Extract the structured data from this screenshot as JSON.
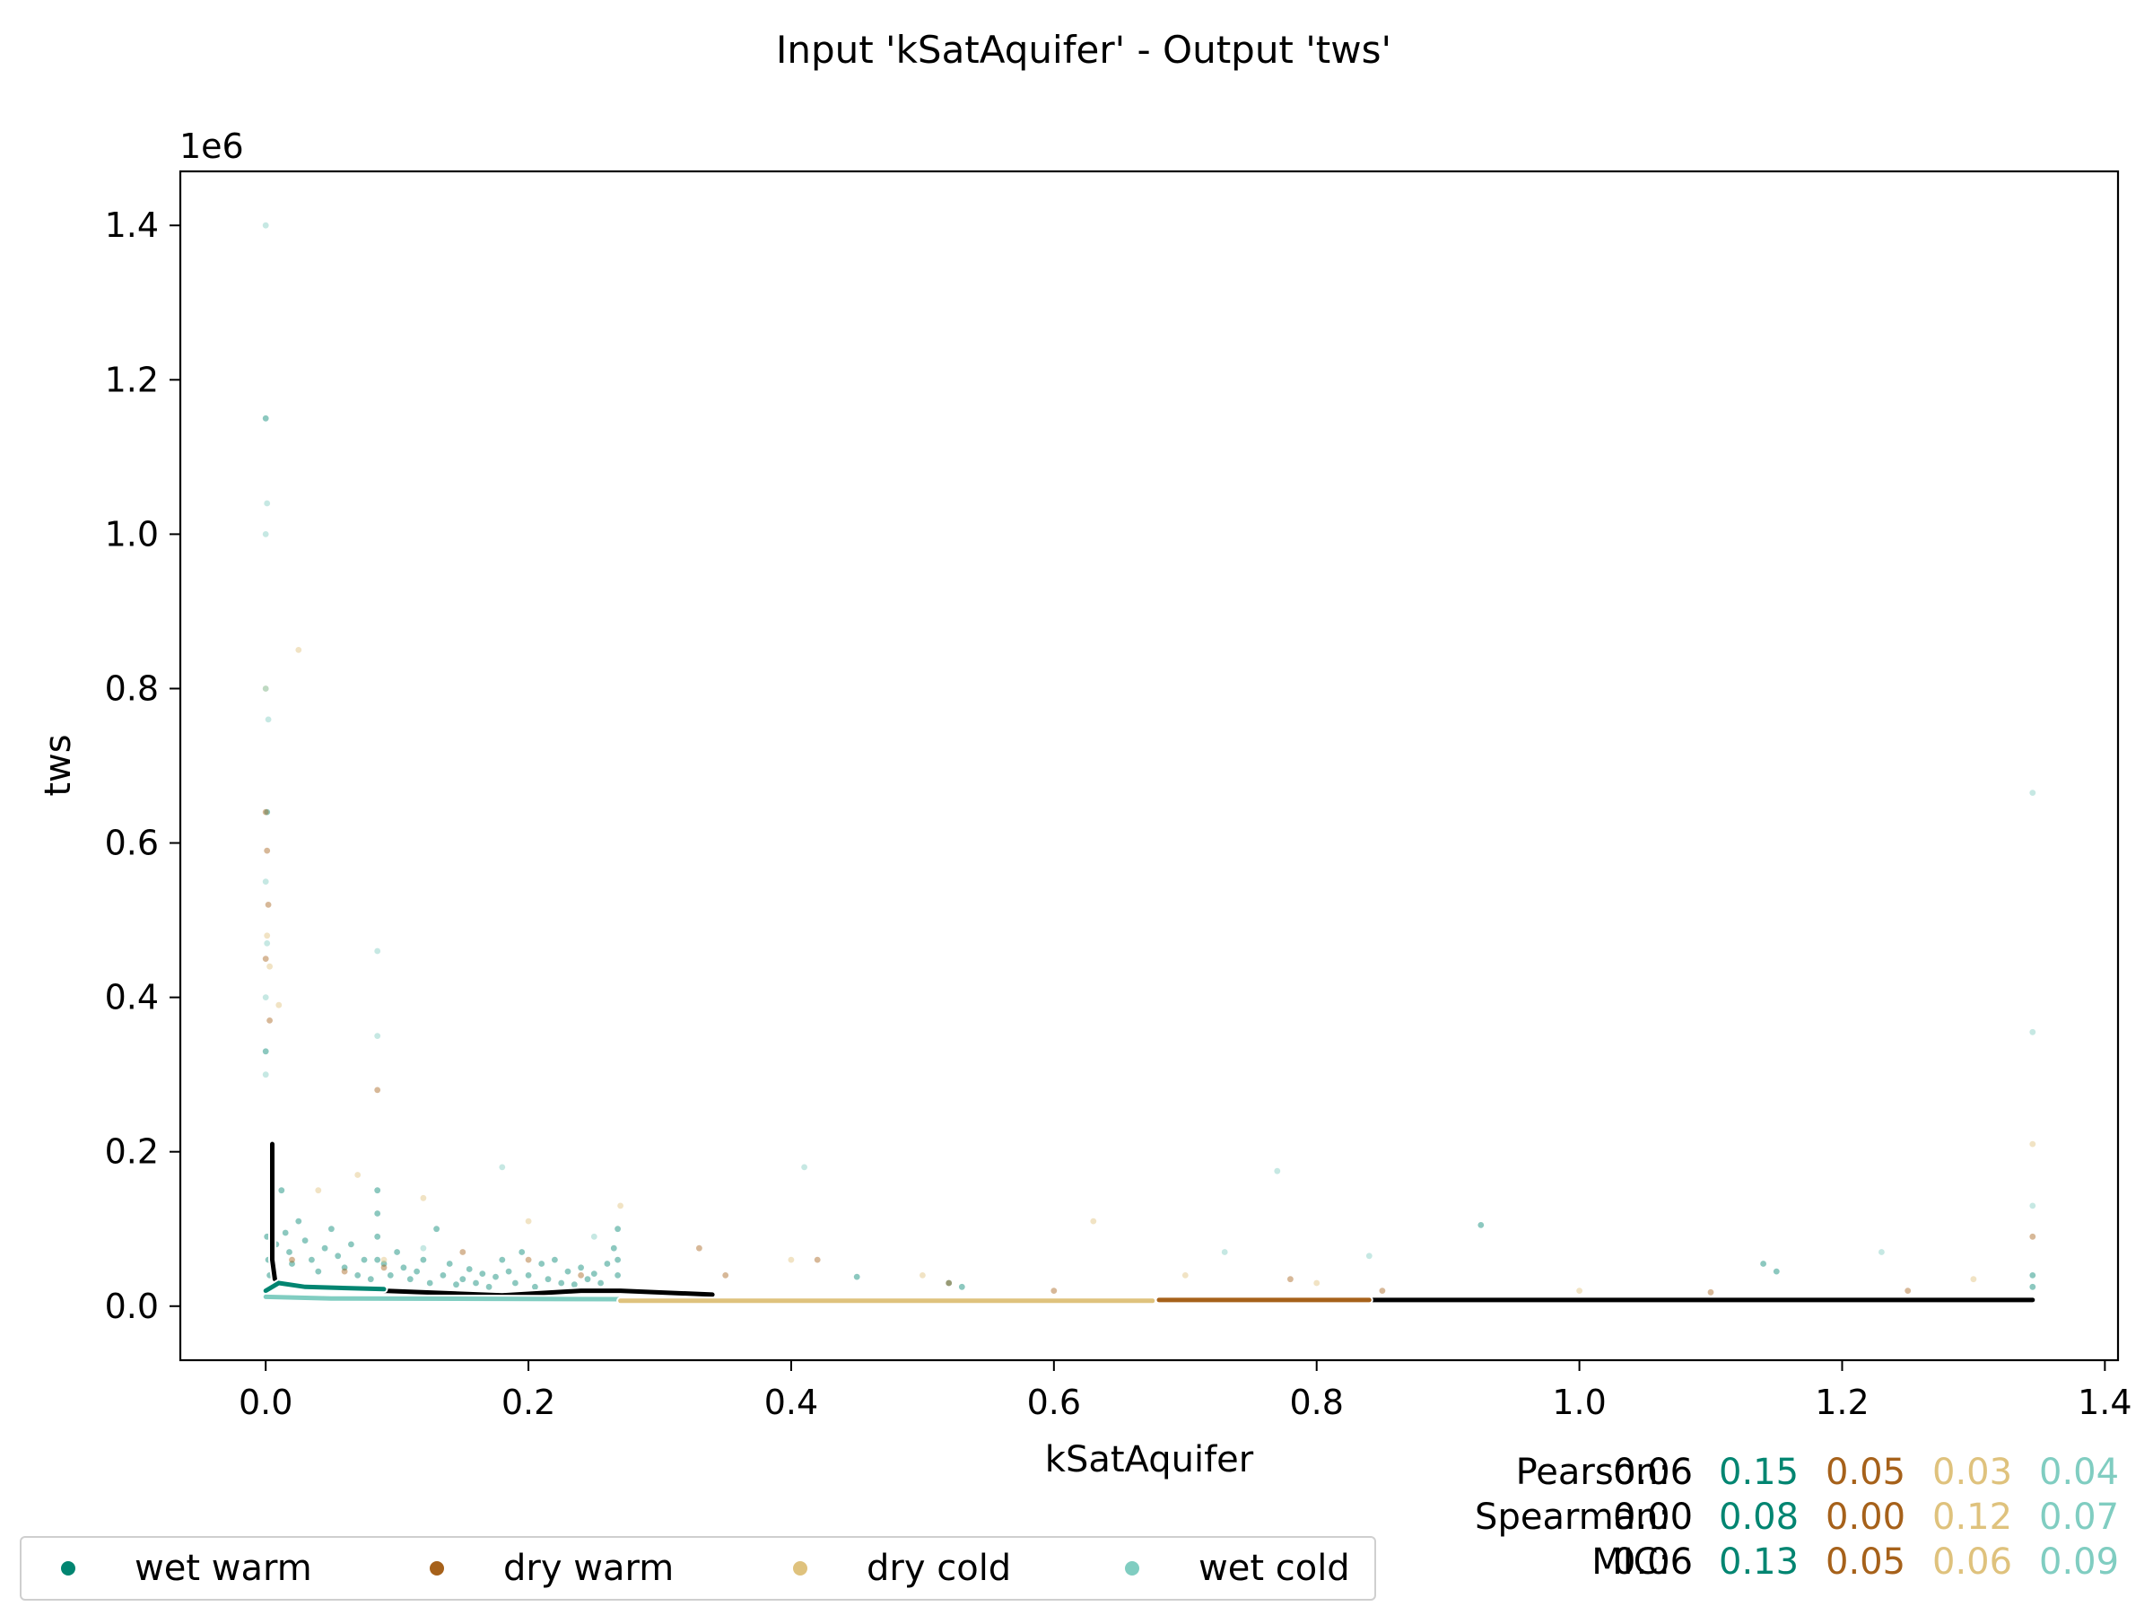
{
  "chart_data": {
    "type": "scatter",
    "title": "Input 'kSatAquifer' - Output 'tws'",
    "xlabel": "kSatAquifer",
    "ylabel": "tws",
    "y_offset_label": "1e6",
    "xlim": [
      -0.065,
      1.41
    ],
    "ylim": [
      -70000,
      1470000
    ],
    "x_ticks": [
      0.0,
      0.2,
      0.4,
      0.6,
      0.8,
      1.0,
      1.2,
      1.4
    ],
    "x_tick_labels": [
      "0.0",
      "0.2",
      "0.4",
      "0.6",
      "0.8",
      "1.0",
      "1.2",
      "1.4"
    ],
    "y_ticks": [
      0,
      200000,
      400000,
      600000,
      800000,
      1000000,
      1200000,
      1400000
    ],
    "y_tick_labels": [
      "0.0",
      "0.2",
      "0.4",
      "0.6",
      "0.8",
      "1.0",
      "1.2",
      "1.4"
    ],
    "grid": false,
    "legend_position": "bottom-left",
    "series": [
      {
        "name": "wet warm",
        "color": "#018571",
        "points": [
          [
            0.0,
            1150000
          ],
          [
            0.001,
            640000
          ],
          [
            0.0,
            330000
          ],
          [
            0.001,
            90000
          ],
          [
            0.002,
            60000
          ],
          [
            0.003,
            40000
          ],
          [
            0.005,
            120000
          ],
          [
            0.008,
            80000
          ],
          [
            0.012,
            150000
          ],
          [
            0.015,
            95000
          ],
          [
            0.018,
            70000
          ],
          [
            0.02,
            55000
          ],
          [
            0.025,
            110000
          ],
          [
            0.03,
            85000
          ],
          [
            0.035,
            60000
          ],
          [
            0.04,
            45000
          ],
          [
            0.045,
            75000
          ],
          [
            0.05,
            100000
          ],
          [
            0.055,
            65000
          ],
          [
            0.06,
            50000
          ],
          [
            0.065,
            80000
          ],
          [
            0.07,
            40000
          ],
          [
            0.075,
            60000
          ],
          [
            0.08,
            35000
          ],
          [
            0.085,
            150000
          ],
          [
            0.085,
            120000
          ],
          [
            0.085,
            90000
          ],
          [
            0.085,
            60000
          ],
          [
            0.09,
            55000
          ],
          [
            0.095,
            40000
          ],
          [
            0.1,
            70000
          ],
          [
            0.105,
            50000
          ],
          [
            0.11,
            35000
          ],
          [
            0.115,
            45000
          ],
          [
            0.12,
            60000
          ],
          [
            0.125,
            30000
          ],
          [
            0.13,
            100000
          ],
          [
            0.135,
            40000
          ],
          [
            0.14,
            55000
          ],
          [
            0.145,
            28000
          ],
          [
            0.15,
            35000
          ],
          [
            0.155,
            48000
          ],
          [
            0.16,
            30000
          ],
          [
            0.165,
            42000
          ],
          [
            0.17,
            25000
          ],
          [
            0.175,
            38000
          ],
          [
            0.18,
            60000
          ],
          [
            0.185,
            45000
          ],
          [
            0.19,
            30000
          ],
          [
            0.195,
            70000
          ],
          [
            0.2,
            40000
          ],
          [
            0.205,
            25000
          ],
          [
            0.21,
            55000
          ],
          [
            0.215,
            35000
          ],
          [
            0.22,
            60000
          ],
          [
            0.225,
            30000
          ],
          [
            0.23,
            45000
          ],
          [
            0.235,
            28000
          ],
          [
            0.24,
            50000
          ],
          [
            0.245,
            35000
          ],
          [
            0.25,
            42000
          ],
          [
            0.255,
            30000
          ],
          [
            0.26,
            55000
          ],
          [
            0.265,
            75000
          ],
          [
            0.268,
            100000
          ],
          [
            0.268,
            60000
          ],
          [
            0.268,
            40000
          ],
          [
            0.45,
            38000
          ],
          [
            0.52,
            30000
          ],
          [
            0.53,
            25000
          ],
          [
            0.925,
            105000
          ],
          [
            1.14,
            55000
          ],
          [
            1.15,
            45000
          ],
          [
            1.345,
            40000
          ],
          [
            1.345,
            25000
          ]
        ]
      },
      {
        "name": "dry warm",
        "color": "#a6611a",
        "points": [
          [
            0.0,
            640000
          ],
          [
            0.001,
            590000
          ],
          [
            0.002,
            520000
          ],
          [
            0.0,
            450000
          ],
          [
            0.003,
            370000
          ],
          [
            0.005,
            100000
          ],
          [
            0.02,
            60000
          ],
          [
            0.06,
            45000
          ],
          [
            0.085,
            280000
          ],
          [
            0.09,
            50000
          ],
          [
            0.15,
            70000
          ],
          [
            0.2,
            60000
          ],
          [
            0.24,
            40000
          ],
          [
            0.33,
            75000
          ],
          [
            0.35,
            40000
          ],
          [
            0.42,
            60000
          ],
          [
            0.52,
            30000
          ],
          [
            0.6,
            20000
          ],
          [
            0.78,
            35000
          ],
          [
            0.85,
            20000
          ],
          [
            1.1,
            18000
          ],
          [
            1.25,
            20000
          ],
          [
            1.345,
            90000
          ]
        ]
      },
      {
        "name": "dry cold",
        "color": "#dfc27d",
        "points": [
          [
            0.0,
            800000
          ],
          [
            0.001,
            480000
          ],
          [
            0.003,
            440000
          ],
          [
            0.01,
            390000
          ],
          [
            0.025,
            850000
          ],
          [
            0.04,
            150000
          ],
          [
            0.07,
            170000
          ],
          [
            0.09,
            60000
          ],
          [
            0.12,
            140000
          ],
          [
            0.2,
            110000
          ],
          [
            0.27,
            130000
          ],
          [
            0.4,
            60000
          ],
          [
            0.5,
            40000
          ],
          [
            0.63,
            110000
          ],
          [
            0.7,
            40000
          ],
          [
            0.8,
            30000
          ],
          [
            1.0,
            20000
          ],
          [
            1.3,
            35000
          ],
          [
            1.345,
            210000
          ]
        ]
      },
      {
        "name": "wet cold",
        "color": "#80cdc1",
        "points": [
          [
            0.0,
            1400000
          ],
          [
            0.0,
            1000000
          ],
          [
            0.001,
            1040000
          ],
          [
            0.0,
            800000
          ],
          [
            0.002,
            760000
          ],
          [
            0.0,
            550000
          ],
          [
            0.001,
            470000
          ],
          [
            0.0,
            400000
          ],
          [
            0.0,
            300000
          ],
          [
            0.005,
            200000
          ],
          [
            0.085,
            460000
          ],
          [
            0.085,
            350000
          ],
          [
            0.12,
            75000
          ],
          [
            0.18,
            180000
          ],
          [
            0.25,
            90000
          ],
          [
            0.41,
            180000
          ],
          [
            0.73,
            70000
          ],
          [
            0.77,
            175000
          ],
          [
            0.84,
            65000
          ],
          [
            1.23,
            70000
          ],
          [
            1.345,
            665000
          ],
          [
            1.345,
            355000
          ],
          [
            1.345,
            130000
          ]
        ]
      }
    ],
    "trend_lines": [
      {
        "color": "#000000",
        "segments": [
          [
            [
              0.005,
              210000
            ],
            [
              0.005,
              60000
            ],
            [
              0.007,
              35000
            ]
          ],
          [
            [
              0.09,
              20000
            ],
            [
              0.18,
              14000
            ],
            [
              0.24,
              20000
            ],
            [
              0.27,
              20000
            ],
            [
              0.34,
              15000
            ]
          ],
          [
            [
              0.84,
              8000
            ],
            [
              1.1,
              8000
            ],
            [
              1.345,
              8000
            ]
          ]
        ]
      },
      {
        "color": "#018571",
        "segments": [
          [
            [
              0.0,
              20000
            ],
            [
              0.01,
              30000
            ],
            [
              0.03,
              25000
            ],
            [
              0.09,
              22000
            ]
          ]
        ]
      },
      {
        "color": "#80cdc1",
        "segments": [
          [
            [
              0.0,
              12000
            ],
            [
              0.05,
              10000
            ],
            [
              0.27,
              9000
            ]
          ]
        ]
      },
      {
        "color": "#dfc27d",
        "segments": [
          [
            [
              0.27,
              7000
            ],
            [
              0.5,
              7000
            ],
            [
              0.675,
              7000
            ]
          ]
        ]
      },
      {
        "color": "#a6611a",
        "segments": [
          [
            [
              0.68,
              8000
            ],
            [
              0.84,
              8000
            ]
          ]
        ]
      }
    ],
    "stats": [
      {
        "label": "Pearson:",
        "values": [
          "0.06",
          "0.15",
          "0.05",
          "0.03",
          "0.04"
        ]
      },
      {
        "label": "Spearman:",
        "values": [
          "0.00",
          "0.08",
          "0.00",
          "0.12",
          "0.07"
        ]
      },
      {
        "label": "MIC:",
        "values": [
          "0.06",
          "0.13",
          "0.05",
          "0.06",
          "0.09"
        ]
      }
    ],
    "stat_colors": [
      "#000000",
      "#018571",
      "#a6611a",
      "#dfc27d",
      "#80cdc1"
    ]
  }
}
